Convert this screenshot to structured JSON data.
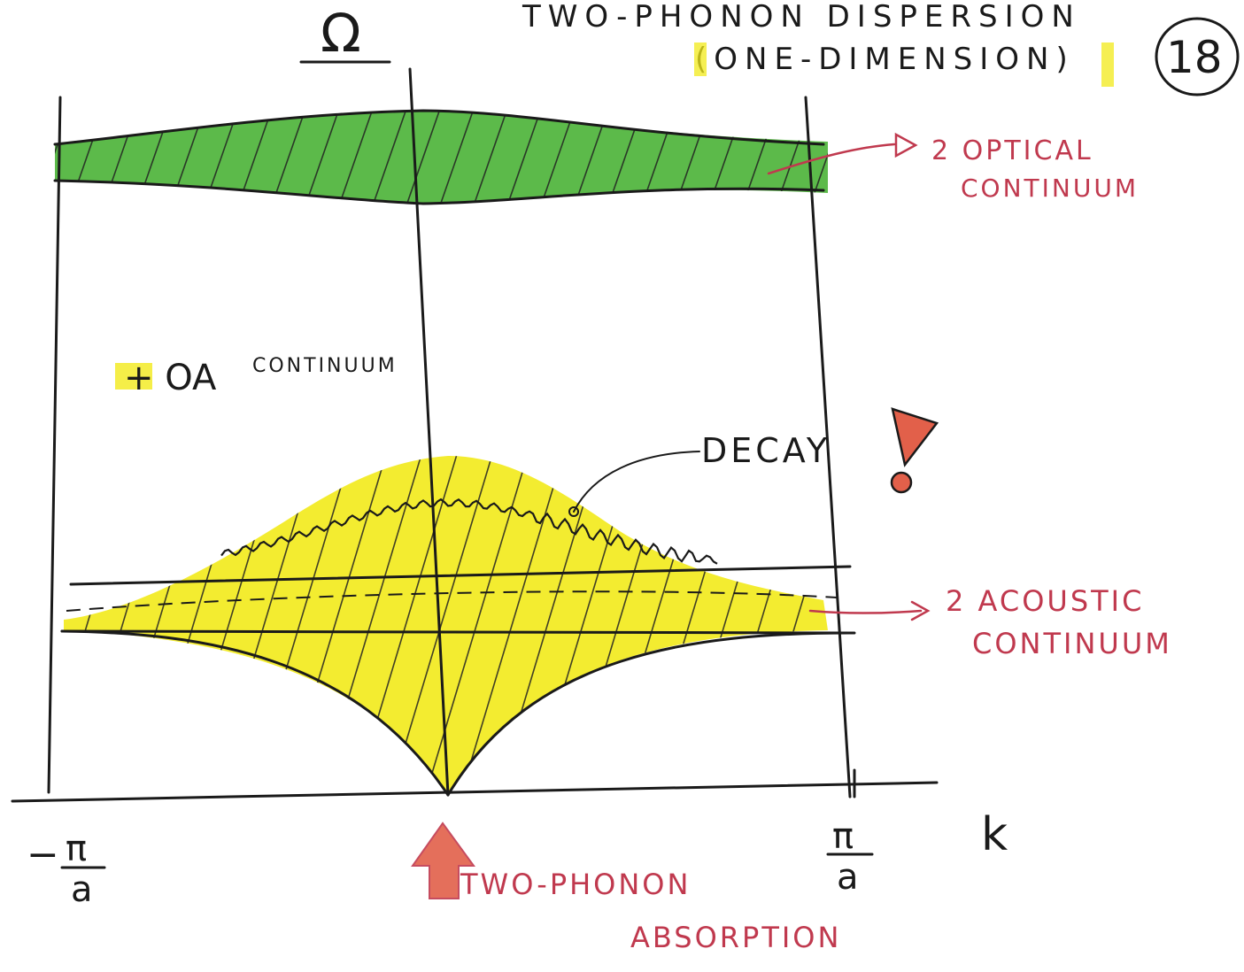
{
  "title_line1": "TWO-PHONON DISPERSION",
  "title_line2": "(ONE-DIMENSION)",
  "page_number": "18",
  "axis_y_label": "Ω",
  "axis_x_label": "k",
  "tick_left": {
    "num": "π",
    "den": "a",
    "sign": "−"
  },
  "tick_right": {
    "num": "π",
    "den": "a"
  },
  "labels": {
    "optical_line1": "2 OPTICAL",
    "optical_line2": "CONTINUUM",
    "oa": "+ OA",
    "oa_small": "CONTINUUM",
    "decay": "DECAY",
    "acoustic_line1": "2 ACOUSTIC",
    "acoustic_line2": "CONTINUUM",
    "absorption_line1": "TWO-PHONON",
    "absorption_line2": "ABSORPTION"
  },
  "colors": {
    "optical_band": "#3fae2a",
    "oa_band": "#f2ea1a",
    "annotation_red": "#c0394e",
    "arrow_fill": "#e2604a"
  }
}
